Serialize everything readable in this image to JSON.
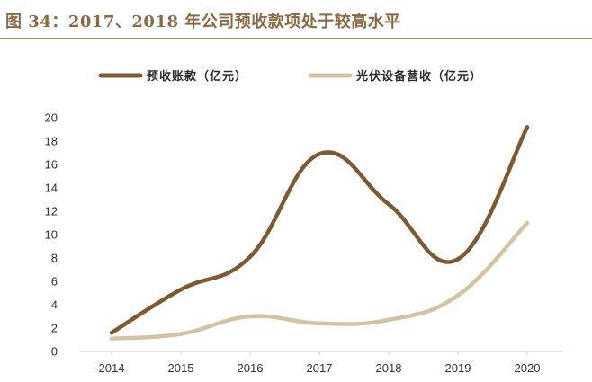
{
  "figure": {
    "title": "图 34：2017、2018 年公司预收款项处于较高水平"
  },
  "chart_data": {
    "type": "line",
    "categories": [
      "2014",
      "2015",
      "2016",
      "2017",
      "2018",
      "2019",
      "2020"
    ],
    "series": [
      {
        "name": "预收账款（亿元）",
        "values": [
          1.6,
          5.3,
          8.1,
          16.9,
          12.6,
          7.9,
          19.2
        ],
        "color": "#7d5a32"
      },
      {
        "name": "光伏设备营收（亿元）",
        "values": [
          1.1,
          1.5,
          3.0,
          2.4,
          2.7,
          4.8,
          11.0
        ],
        "color": "#d4c3a3"
      }
    ],
    "ylim": [
      0,
      20
    ],
    "yticks": [
      0,
      2,
      4,
      6,
      8,
      10,
      12,
      14,
      16,
      18,
      20
    ],
    "xlabel": "",
    "ylabel": "",
    "legend_position": "top",
    "grid": false
  }
}
